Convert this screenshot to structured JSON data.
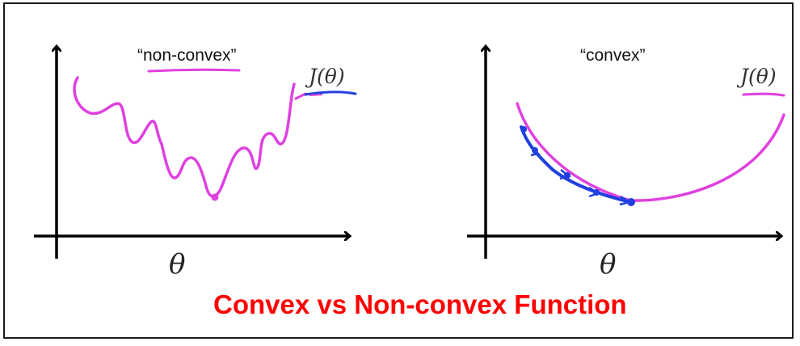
{
  "figure": {
    "caption": "Convex vs Non-convex Function",
    "caption_color": "#ff0000",
    "curve_color": "#e040e0",
    "path_color": "#2040e0",
    "axis_color": "#000000"
  },
  "panels": [
    {
      "label": "“non-convex”",
      "y_label": "J(θ)",
      "x_label": "θ"
    },
    {
      "label": "“convex”",
      "y_label": "J(θ)",
      "x_label": "θ"
    }
  ]
}
